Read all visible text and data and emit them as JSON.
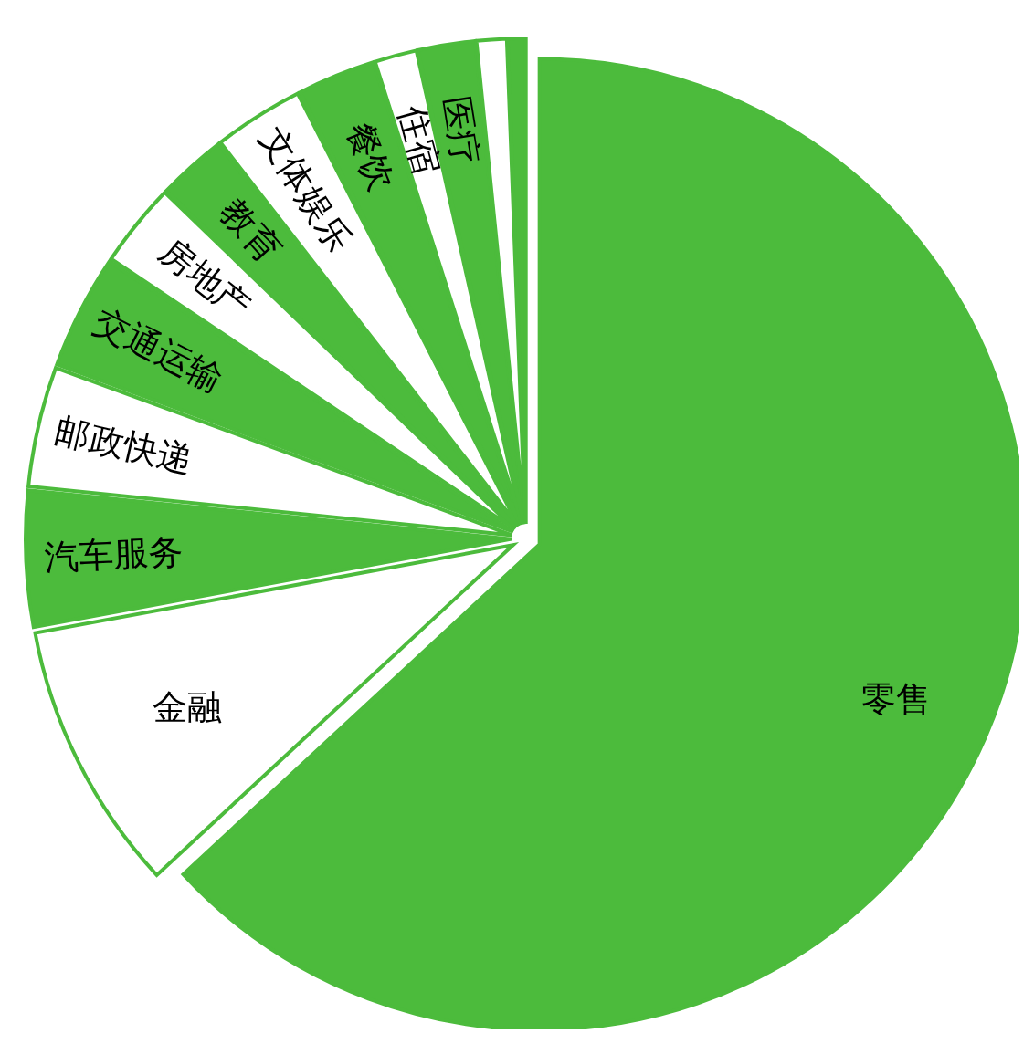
{
  "chart_data": {
    "type": "pie",
    "categories": [
      "零售",
      "金融",
      "汽车服务",
      "邮政快递",
      "交通运输",
      "房地产",
      "教育",
      "文体娱乐",
      "餐饮",
      "住宿",
      "医疗",
      null,
      null
    ],
    "values": [
      63.1,
      9,
      4.5,
      4,
      3.8,
      2.8,
      2.3,
      3,
      2.6,
      1.4,
      1.9,
      1,
      0.6
    ],
    "colors": [
      "#4cbb3c",
      "#ffffff",
      "#4cbb3c",
      "#ffffff",
      "#4cbb3c",
      "#ffffff",
      "#4cbb3c",
      "#ffffff",
      "#4cbb3c",
      "#ffffff",
      "#4cbb3c",
      "#ffffff",
      "#4cbb3c"
    ],
    "legend": false
  }
}
